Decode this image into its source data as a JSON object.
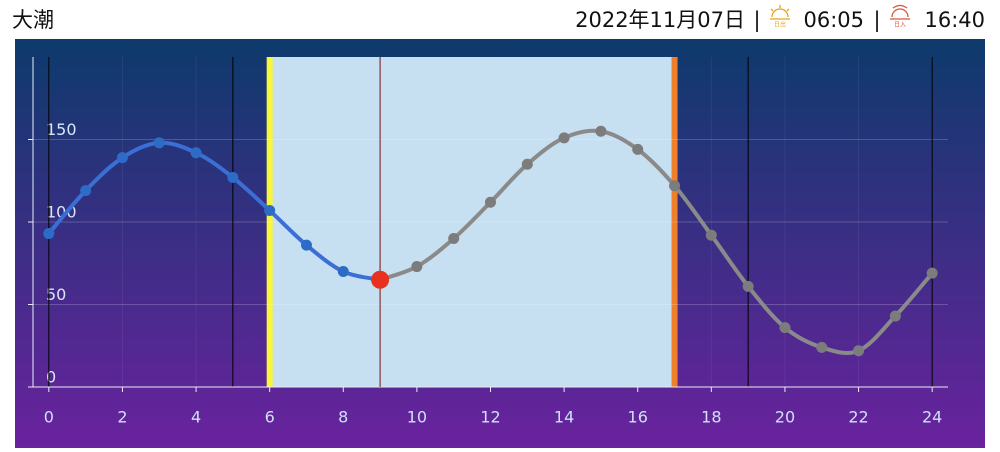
{
  "header": {
    "title": "大潮",
    "date": "2022年11月07日",
    "separator": "|",
    "sunrise_label": "日出",
    "sunrise": "06:05",
    "sunset_label": "日入",
    "sunset": "16:40"
  },
  "chart_data": {
    "type": "line",
    "x": [
      0,
      1,
      2,
      3,
      4,
      5,
      6,
      7,
      8,
      9,
      10,
      11,
      12,
      13,
      14,
      15,
      16,
      17,
      18,
      19,
      20,
      21,
      22,
      23,
      24
    ],
    "series": [
      {
        "values": [
          93,
          119,
          139,
          148,
          142,
          127,
          107,
          86,
          70,
          65,
          73,
          90,
          112,
          135,
          151,
          155,
          144,
          122,
          92,
          61,
          36,
          24,
          22,
          43,
          69
        ],
        "color": "#3b6fd6",
        "future_color": "#8a8a8a"
      }
    ],
    "now": 9,
    "now_color": "#e8321f",
    "daylight": [
      6,
      17
    ],
    "daylight_color": "#c6dff1",
    "sunrise_color": "#f8f53a",
    "sunset_color": "#f07f2a",
    "markers": [
      0,
      5,
      19,
      24
    ],
    "xlim": [
      -0.43,
      24.43
    ],
    "ylim": [
      0,
      200
    ],
    "xticks": [
      0,
      2,
      4,
      6,
      8,
      10,
      12,
      14,
      16,
      18,
      20,
      22,
      24
    ],
    "yticks": [
      0,
      50,
      100,
      150
    ],
    "grid": true
  }
}
